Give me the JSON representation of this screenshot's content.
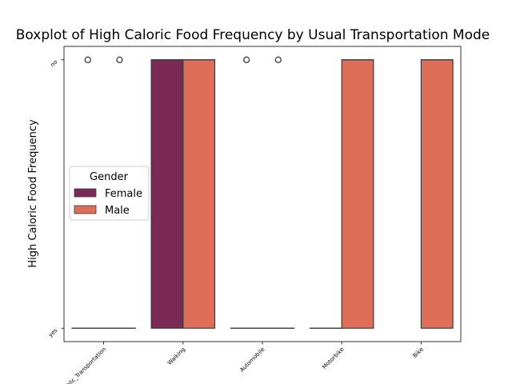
{
  "chart_data": {
    "type": "boxplot",
    "title": "Boxplot of High Caloric Food Frequency by Usual Transportation Mode",
    "xlabel": "",
    "ylabel": "High Caloric Food Frequency",
    "categories": [
      "Public_Transportation",
      "Walking",
      "Automobile",
      "Motorbike",
      "Bike"
    ],
    "y_categories": [
      "yes",
      "no"
    ],
    "y_values": [
      0,
      1
    ],
    "ylim": [
      -0.05,
      1.05
    ],
    "grid": false,
    "legend": {
      "title": "Gender",
      "placement": "center-left"
    },
    "series": [
      {
        "name": "Female",
        "color": "#7b2a55",
        "boxes": [
          {
            "category": "Public_Transportation",
            "q1": 0,
            "median": 0,
            "q3": 0,
            "whisker_low": 0,
            "whisker_high": 0,
            "outliers": [
              1
            ]
          },
          {
            "category": "Walking",
            "q1": 0,
            "median": 1,
            "q3": 1,
            "whisker_low": 0,
            "whisker_high": 1,
            "outliers": []
          },
          {
            "category": "Automobile",
            "q1": 0,
            "median": 0,
            "q3": 0,
            "whisker_low": 0,
            "whisker_high": 0,
            "outliers": [
              1
            ]
          },
          {
            "category": "Motorbike",
            "q1": 0,
            "median": 0,
            "q3": 0,
            "whisker_low": 0,
            "whisker_high": 0,
            "outliers": []
          },
          null
        ]
      },
      {
        "name": "Male",
        "color": "#de6e58",
        "boxes": [
          {
            "category": "Public_Transportation",
            "q1": 0,
            "median": 0,
            "q3": 0,
            "whisker_low": 0,
            "whisker_high": 0,
            "outliers": [
              1
            ]
          },
          {
            "category": "Walking",
            "q1": 0,
            "median": 1,
            "q3": 1,
            "whisker_low": 0,
            "whisker_high": 1,
            "outliers": []
          },
          {
            "category": "Automobile",
            "q1": 0,
            "median": 0,
            "q3": 0,
            "whisker_low": 0,
            "whisker_high": 0,
            "outliers": [
              1
            ]
          },
          {
            "category": "Motorbike",
            "q1": 0,
            "median": 1,
            "q3": 1,
            "whisker_low": 0,
            "whisker_high": 1,
            "outliers": []
          },
          {
            "category": "Bike",
            "q1": 0,
            "median": 1,
            "q3": 1,
            "whisker_low": 0,
            "whisker_high": 1,
            "outliers": []
          }
        ]
      }
    ]
  }
}
